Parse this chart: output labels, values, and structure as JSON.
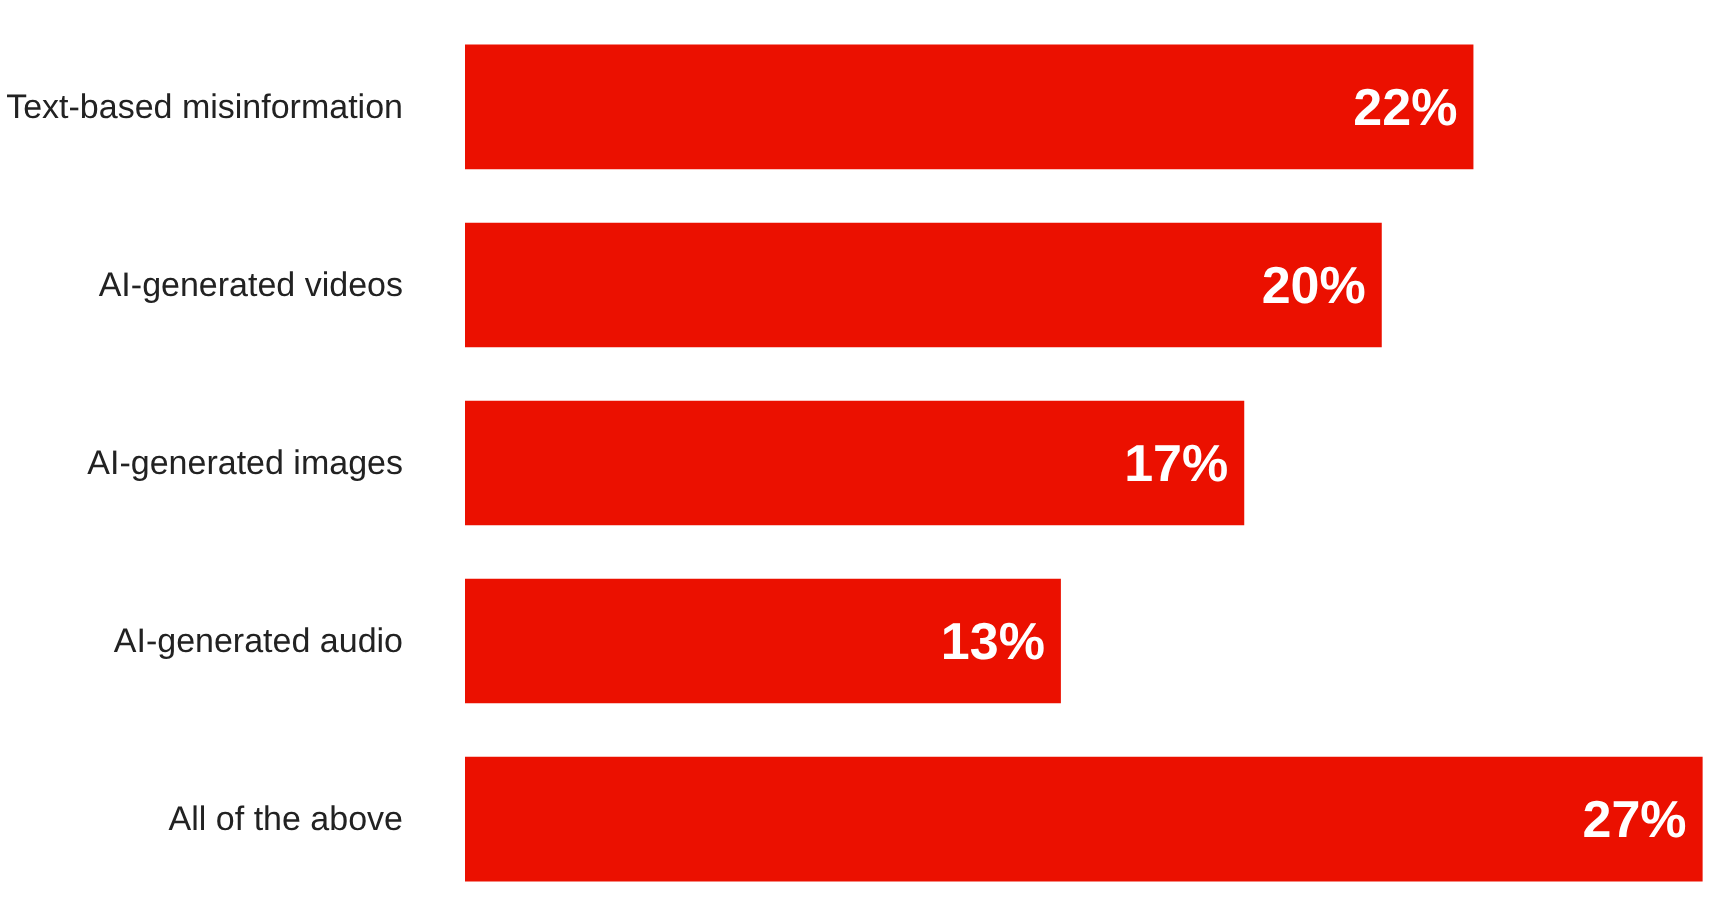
{
  "chart_data": {
    "type": "bar",
    "orientation": "horizontal",
    "categories": [
      "Text-based misinformation",
      "AI-generated videos",
      "AI-generated images",
      "AI-generated audio",
      "All of the above"
    ],
    "values": [
      22,
      20,
      17,
      13,
      27
    ],
    "color": "#eb1000",
    "data_labels": true,
    "value_labels": [
      "22%",
      "20%",
      "17%",
      "13%",
      "27%"
    ]
  }
}
